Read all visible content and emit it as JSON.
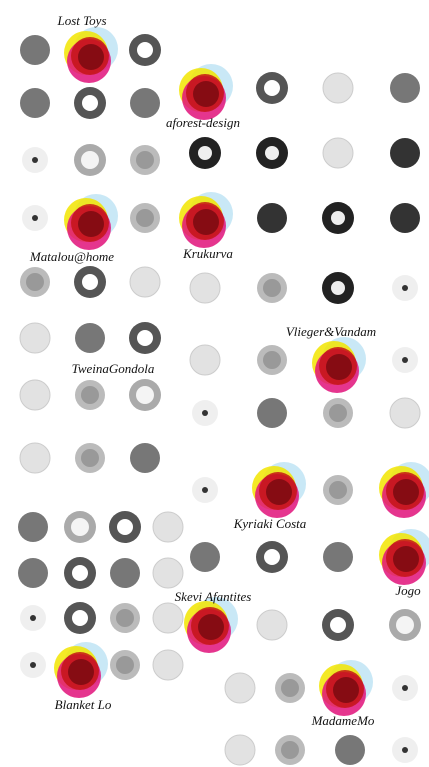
{
  "labels": [
    "Lost Toys",
    "aforest-design",
    "Matalou@home",
    "Krukurva",
    "Vlieger&Vandam",
    "TweinaGondola",
    "Kyriaki Costa",
    "Jogo",
    "Skevi Afantites",
    "Blanket Lo",
    "MadameMo"
  ]
}
